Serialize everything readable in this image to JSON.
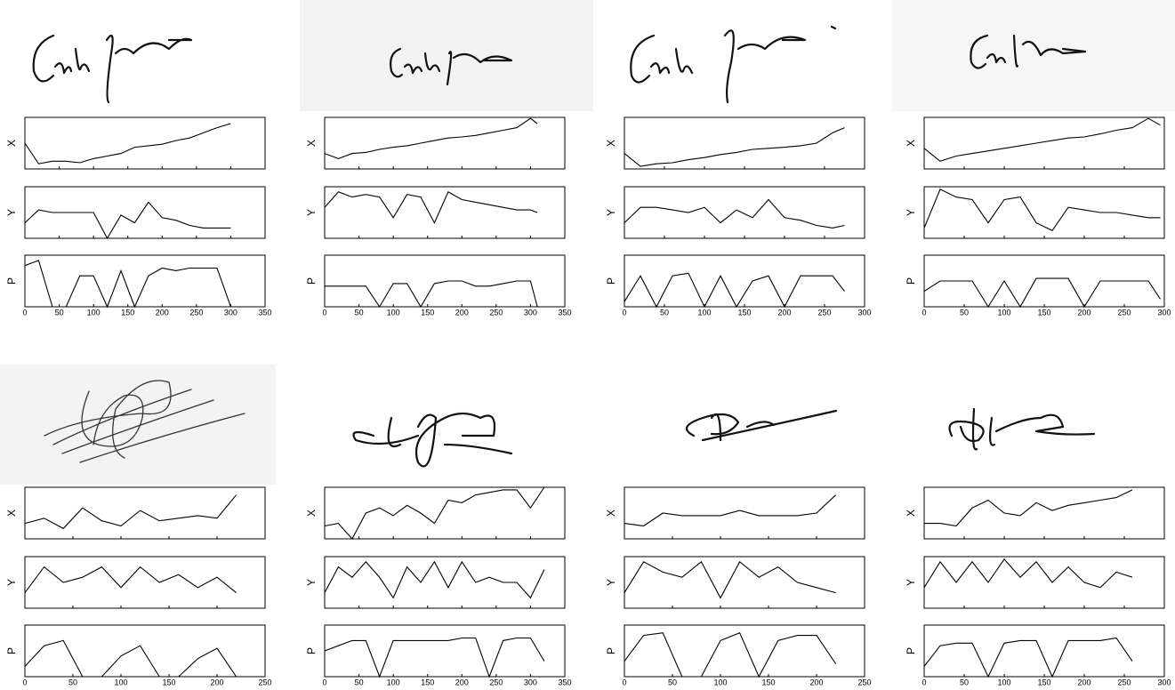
{
  "chart_data": [
    {
      "type": "line",
      "xlim": [
        0,
        350
      ],
      "xticks": [
        0,
        50,
        100,
        150,
        200,
        250,
        300,
        350
      ],
      "ylim": [
        0,
        1
      ],
      "x": [
        0,
        20,
        40,
        60,
        80,
        100,
        120,
        140,
        160,
        180,
        200,
        220,
        240,
        260,
        280,
        300
      ],
      "series": [
        {
          "name": "X",
          "values": [
            0.5,
            0.1,
            0.15,
            0.15,
            0.12,
            0.2,
            0.25,
            0.3,
            0.42,
            0.45,
            0.48,
            0.55,
            0.6,
            0.7,
            0.8,
            0.88
          ]
        },
        {
          "name": "Y",
          "values": [
            0.3,
            0.55,
            0.5,
            0.5,
            0.5,
            0.5,
            0.0,
            0.45,
            0.3,
            0.7,
            0.4,
            0.35,
            0.25,
            0.2,
            0.2,
            0.2
          ]
        },
        {
          "name": "P",
          "values": [
            0.8,
            0.9,
            0,
            0,
            0.6,
            0.6,
            0,
            0.7,
            0,
            0.6,
            0.75,
            0.7,
            0.75,
            0.75,
            0.75,
            0
          ]
        }
      ]
    },
    {
      "type": "line",
      "xlim": [
        0,
        350
      ],
      "xticks": [
        0,
        50,
        100,
        150,
        200,
        250,
        300,
        350
      ],
      "ylim": [
        0,
        1
      ],
      "x": [
        0,
        20,
        40,
        60,
        80,
        100,
        120,
        140,
        160,
        180,
        200,
        220,
        240,
        260,
        280,
        300,
        310
      ],
      "series": [
        {
          "name": "X",
          "values": [
            0.3,
            0.2,
            0.3,
            0.32,
            0.38,
            0.42,
            0.45,
            0.5,
            0.55,
            0.6,
            0.62,
            0.65,
            0.7,
            0.75,
            0.8,
            0.98,
            0.88
          ]
        },
        {
          "name": "Y",
          "values": [
            0.6,
            0.9,
            0.8,
            0.85,
            0.8,
            0.4,
            0.85,
            0.8,
            0.3,
            0.9,
            0.75,
            0.7,
            0.65,
            0.6,
            0.55,
            0.55,
            0.5
          ]
        },
        {
          "name": "P",
          "values": [
            0.4,
            0.4,
            0.4,
            0.4,
            0,
            0.45,
            0.45,
            0,
            0.45,
            0.5,
            0.5,
            0.4,
            0.4,
            0.45,
            0.5,
            0.5,
            0
          ]
        }
      ]
    },
    {
      "type": "line",
      "xlim": [
        0,
        300
      ],
      "xticks": [
        0,
        50,
        100,
        150,
        200,
        250,
        300
      ],
      "ylim": [
        0,
        1
      ],
      "x": [
        0,
        20,
        40,
        60,
        80,
        100,
        120,
        140,
        160,
        180,
        200,
        220,
        240,
        260,
        275
      ],
      "series": [
        {
          "name": "X",
          "values": [
            0.3,
            0.05,
            0.1,
            0.12,
            0.18,
            0.22,
            0.28,
            0.32,
            0.38,
            0.4,
            0.42,
            0.45,
            0.5,
            0.7,
            0.8
          ]
        },
        {
          "name": "Y",
          "values": [
            0.3,
            0.6,
            0.6,
            0.55,
            0.5,
            0.6,
            0.3,
            0.55,
            0.4,
            0.75,
            0.4,
            0.35,
            0.25,
            0.2,
            0.25
          ]
        },
        {
          "name": "P",
          "values": [
            0.1,
            0.6,
            0,
            0.6,
            0.65,
            0,
            0.6,
            0,
            0.5,
            0.6,
            0,
            0.6,
            0.6,
            0.6,
            0.3
          ]
        }
      ]
    },
    {
      "type": "line",
      "xlim": [
        0,
        300
      ],
      "xticks": [
        0,
        50,
        100,
        150,
        200,
        250,
        300
      ],
      "ylim": [
        0,
        1
      ],
      "x": [
        0,
        20,
        40,
        60,
        80,
        100,
        120,
        140,
        160,
        180,
        200,
        220,
        240,
        260,
        280,
        295
      ],
      "series": [
        {
          "name": "X",
          "values": [
            0.4,
            0.15,
            0.25,
            0.3,
            0.35,
            0.4,
            0.45,
            0.5,
            0.55,
            0.6,
            0.62,
            0.68,
            0.75,
            0.8,
            0.98,
            0.85
          ]
        },
        {
          "name": "Y",
          "values": [
            0.2,
            0.95,
            0.8,
            0.75,
            0.3,
            0.75,
            0.8,
            0.3,
            0.15,
            0.6,
            0.55,
            0.5,
            0.5,
            0.45,
            0.4,
            0.4
          ]
        },
        {
          "name": "P",
          "values": [
            0.3,
            0.5,
            0.5,
            0.5,
            0,
            0.5,
            0,
            0.55,
            0.55,
            0.55,
            0,
            0.5,
            0.5,
            0.5,
            0.5,
            0.15
          ]
        }
      ]
    },
    {
      "type": "line",
      "xlim": [
        0,
        250
      ],
      "xticks": [
        0,
        50,
        100,
        150,
        200,
        250
      ],
      "ylim": [
        0,
        1
      ],
      "x": [
        0,
        20,
        40,
        60,
        80,
        100,
        120,
        140,
        160,
        180,
        200,
        220
      ],
      "series": [
        {
          "name": "X",
          "values": [
            0.3,
            0.4,
            0.2,
            0.6,
            0.35,
            0.25,
            0.55,
            0.35,
            0.4,
            0.45,
            0.4,
            0.85
          ]
        },
        {
          "name": "Y",
          "values": [
            0.3,
            0.8,
            0.5,
            0.6,
            0.8,
            0.4,
            0.8,
            0.5,
            0.65,
            0.4,
            0.6,
            0.3
          ]
        },
        {
          "name": "P",
          "values": [
            0.2,
            0.6,
            0.7,
            0,
            0,
            0.4,
            0.6,
            0,
            0,
            0.35,
            0.55,
            0
          ]
        }
      ]
    },
    {
      "type": "line",
      "xlim": [
        0,
        350
      ],
      "xticks": [
        0,
        50,
        100,
        150,
        200,
        250,
        300,
        350
      ],
      "ylim": [
        0,
        1
      ],
      "x": [
        0,
        20,
        40,
        60,
        80,
        100,
        120,
        140,
        160,
        180,
        200,
        220,
        240,
        260,
        280,
        300,
        320
      ],
      "series": [
        {
          "name": "X",
          "values": [
            0.25,
            0.3,
            0.0,
            0.5,
            0.6,
            0.45,
            0.65,
            0.5,
            0.3,
            0.75,
            0.7,
            0.85,
            0.9,
            0.95,
            0.95,
            0.6,
            1.0
          ]
        },
        {
          "name": "Y",
          "values": [
            0.3,
            0.8,
            0.6,
            0.9,
            0.6,
            0.2,
            0.8,
            0.5,
            0.9,
            0.4,
            0.9,
            0.5,
            0.6,
            0.5,
            0.5,
            0.2,
            0.75
          ]
        },
        {
          "name": "P",
          "values": [
            0.5,
            0.6,
            0.7,
            0.7,
            0,
            0.7,
            0.7,
            0.7,
            0.7,
            0.7,
            0.75,
            0.75,
            0,
            0.7,
            0.75,
            0.75,
            0.3
          ]
        }
      ]
    },
    {
      "type": "line",
      "xlim": [
        0,
        250
      ],
      "xticks": [
        0,
        50,
        100,
        150,
        200,
        250
      ],
      "ylim": [
        0,
        1
      ],
      "x": [
        0,
        20,
        40,
        60,
        80,
        100,
        120,
        140,
        160,
        180,
        200,
        220
      ],
      "series": [
        {
          "name": "X",
          "values": [
            0.3,
            0.25,
            0.5,
            0.45,
            0.45,
            0.45,
            0.55,
            0.45,
            0.45,
            0.45,
            0.5,
            0.85
          ]
        },
        {
          "name": "Y",
          "values": [
            0.3,
            0.9,
            0.7,
            0.6,
            0.9,
            0.2,
            0.9,
            0.6,
            0.8,
            0.5,
            0.4,
            0.3
          ]
        },
        {
          "name": "P",
          "values": [
            0.3,
            0.8,
            0.85,
            0,
            0,
            0.7,
            0.85,
            0,
            0.7,
            0.8,
            0.8,
            0.25
          ]
        }
      ]
    },
    {
      "type": "line",
      "xlim": [
        0,
        300
      ],
      "xticks": [
        0,
        50,
        100,
        150,
        200,
        250,
        300
      ],
      "ylim": [
        0,
        1
      ],
      "x": [
        0,
        20,
        40,
        60,
        80,
        100,
        120,
        140,
        160,
        180,
        200,
        220,
        240,
        260
      ],
      "series": [
        {
          "name": "X",
          "values": [
            0.3,
            0.3,
            0.25,
            0.6,
            0.75,
            0.5,
            0.45,
            0.7,
            0.55,
            0.65,
            0.7,
            0.75,
            0.8,
            0.95
          ]
        },
        {
          "name": "Y",
          "values": [
            0.4,
            0.9,
            0.5,
            0.9,
            0.5,
            0.95,
            0.6,
            0.9,
            0.5,
            0.8,
            0.5,
            0.4,
            0.7,
            0.6
          ]
        },
        {
          "name": "P",
          "values": [
            0.2,
            0.6,
            0.65,
            0.65,
            0,
            0.65,
            0.7,
            0.7,
            0,
            0.7,
            0.7,
            0.7,
            0.75,
            0.3
          ]
        }
      ]
    }
  ]
}
